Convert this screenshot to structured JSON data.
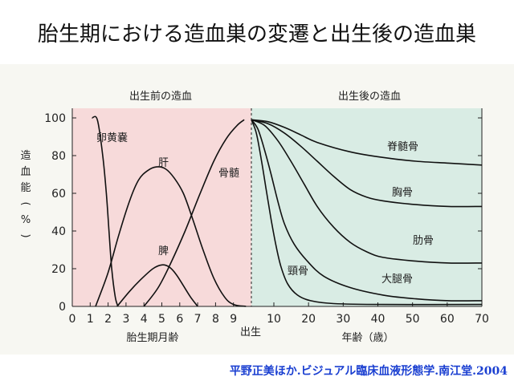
{
  "title": "胎生期における造血巣の変遷と出生後の造血巣",
  "citation": "平野正美ほか.ビジュアル臨床血液形態学.南江堂.2004",
  "colors": {
    "prenatal_bg": "#f7dada",
    "postnatal_bg": "#d9ece4",
    "line": "#111111"
  },
  "chart_data": {
    "type": "line",
    "header_prenatal": "出生前の造血",
    "header_postnatal": "出生後の造血",
    "ylabel_chars": [
      "造",
      "血",
      "能",
      "(",
      "%",
      ")"
    ],
    "ylim": [
      0,
      100
    ],
    "yticks": [
      "0",
      "20",
      "40",
      "60",
      "80",
      "100"
    ],
    "x_prenatal_ticks": [
      "0",
      "1",
      "2",
      "3",
      "4",
      "5",
      "6",
      "7",
      "8",
      "9"
    ],
    "x_postnatal_ticks": [
      "10",
      "20",
      "30",
      "40",
      "50",
      "60",
      "70"
    ],
    "xlabel_prenatal": "胎生期月齢",
    "xlabel_birth": "出生",
    "xlabel_postnatal": "年齢（歳）",
    "prenatal_series": [
      {
        "name": "卵黄嚢",
        "points": [
          [
            1.1,
            100
          ],
          [
            1.4,
            99
          ],
          [
            1.7,
            80
          ],
          [
            1.9,
            60
          ],
          [
            2.05,
            40
          ],
          [
            2.2,
            20
          ],
          [
            2.4,
            5
          ],
          [
            2.55,
            0
          ]
        ]
      },
      {
        "name": "肝",
        "points": [
          [
            1.3,
            0
          ],
          [
            2,
            18
          ],
          [
            2.6,
            38
          ],
          [
            3.2,
            56
          ],
          [
            3.7,
            67
          ],
          [
            4.2,
            72
          ],
          [
            4.7,
            74
          ],
          [
            5.2,
            73
          ],
          [
            5.7,
            68
          ],
          [
            6.2,
            60
          ],
          [
            6.7,
            47
          ],
          [
            7.3,
            30
          ],
          [
            7.9,
            15
          ],
          [
            8.5,
            5
          ],
          [
            9.0,
            1
          ],
          [
            9.7,
            0
          ]
        ]
      },
      {
        "name": "脾",
        "points": [
          [
            2.5,
            0
          ],
          [
            3.2,
            8
          ],
          [
            3.8,
            14
          ],
          [
            4.5,
            20
          ],
          [
            5.0,
            22
          ],
          [
            5.4,
            21
          ],
          [
            5.8,
            17
          ],
          [
            6.2,
            11
          ],
          [
            6.6,
            5
          ],
          [
            7.0,
            0
          ]
        ]
      },
      {
        "name": "骨髄",
        "points": [
          [
            4,
            0
          ],
          [
            4.8,
            10
          ],
          [
            5.5,
            23
          ],
          [
            6.3,
            40
          ],
          [
            7.1,
            59
          ],
          [
            7.9,
            77
          ],
          [
            8.6,
            89
          ],
          [
            9.2,
            96
          ],
          [
            9.6,
            99
          ]
        ]
      }
    ],
    "postnatal_series": [
      {
        "name": "脊髄骨",
        "points": [
          [
            0,
            99
          ],
          [
            5,
            98
          ],
          [
            10,
            95
          ],
          [
            15,
            91
          ],
          [
            20,
            87
          ],
          [
            30,
            82
          ],
          [
            40,
            79
          ],
          [
            50,
            77
          ],
          [
            60,
            76
          ],
          [
            70,
            75
          ]
        ]
      },
      {
        "name": "胸骨",
        "points": [
          [
            0,
            99
          ],
          [
            5,
            97
          ],
          [
            10,
            92
          ],
          [
            15,
            85
          ],
          [
            20,
            77
          ],
          [
            25,
            69
          ],
          [
            30,
            62
          ],
          [
            35,
            58
          ],
          [
            40,
            56
          ],
          [
            50,
            54
          ],
          [
            60,
            53
          ],
          [
            70,
            53
          ]
        ]
      },
      {
        "name": "肋骨",
        "points": [
          [
            0,
            99
          ],
          [
            4,
            96
          ],
          [
            8,
            88
          ],
          [
            12,
            77
          ],
          [
            16,
            65
          ],
          [
            20,
            53
          ],
          [
            25,
            42
          ],
          [
            30,
            34
          ],
          [
            35,
            29
          ],
          [
            40,
            26
          ],
          [
            50,
            24
          ],
          [
            60,
            23
          ],
          [
            70,
            23
          ]
        ]
      },
      {
        "name": "大腿骨",
        "points": [
          [
            0,
            99
          ],
          [
            2,
            94
          ],
          [
            4,
            83
          ],
          [
            6,
            70
          ],
          [
            8,
            56
          ],
          [
            10,
            44
          ],
          [
            13,
            33
          ],
          [
            17,
            24
          ],
          [
            22,
            16
          ],
          [
            30,
            10
          ],
          [
            40,
            6
          ],
          [
            50,
            4
          ],
          [
            60,
            3
          ],
          [
            70,
            3
          ]
        ]
      },
      {
        "name": "頸骨",
        "points": [
          [
            0,
            99
          ],
          [
            1.5,
            92
          ],
          [
            3,
            78
          ],
          [
            4.5,
            62
          ],
          [
            6,
            46
          ],
          [
            7.5,
            32
          ],
          [
            9,
            21
          ],
          [
            11,
            12
          ],
          [
            14,
            6
          ],
          [
            18,
            3
          ],
          [
            25,
            1.5
          ],
          [
            40,
            1
          ],
          [
            70,
            1
          ]
        ]
      }
    ]
  }
}
